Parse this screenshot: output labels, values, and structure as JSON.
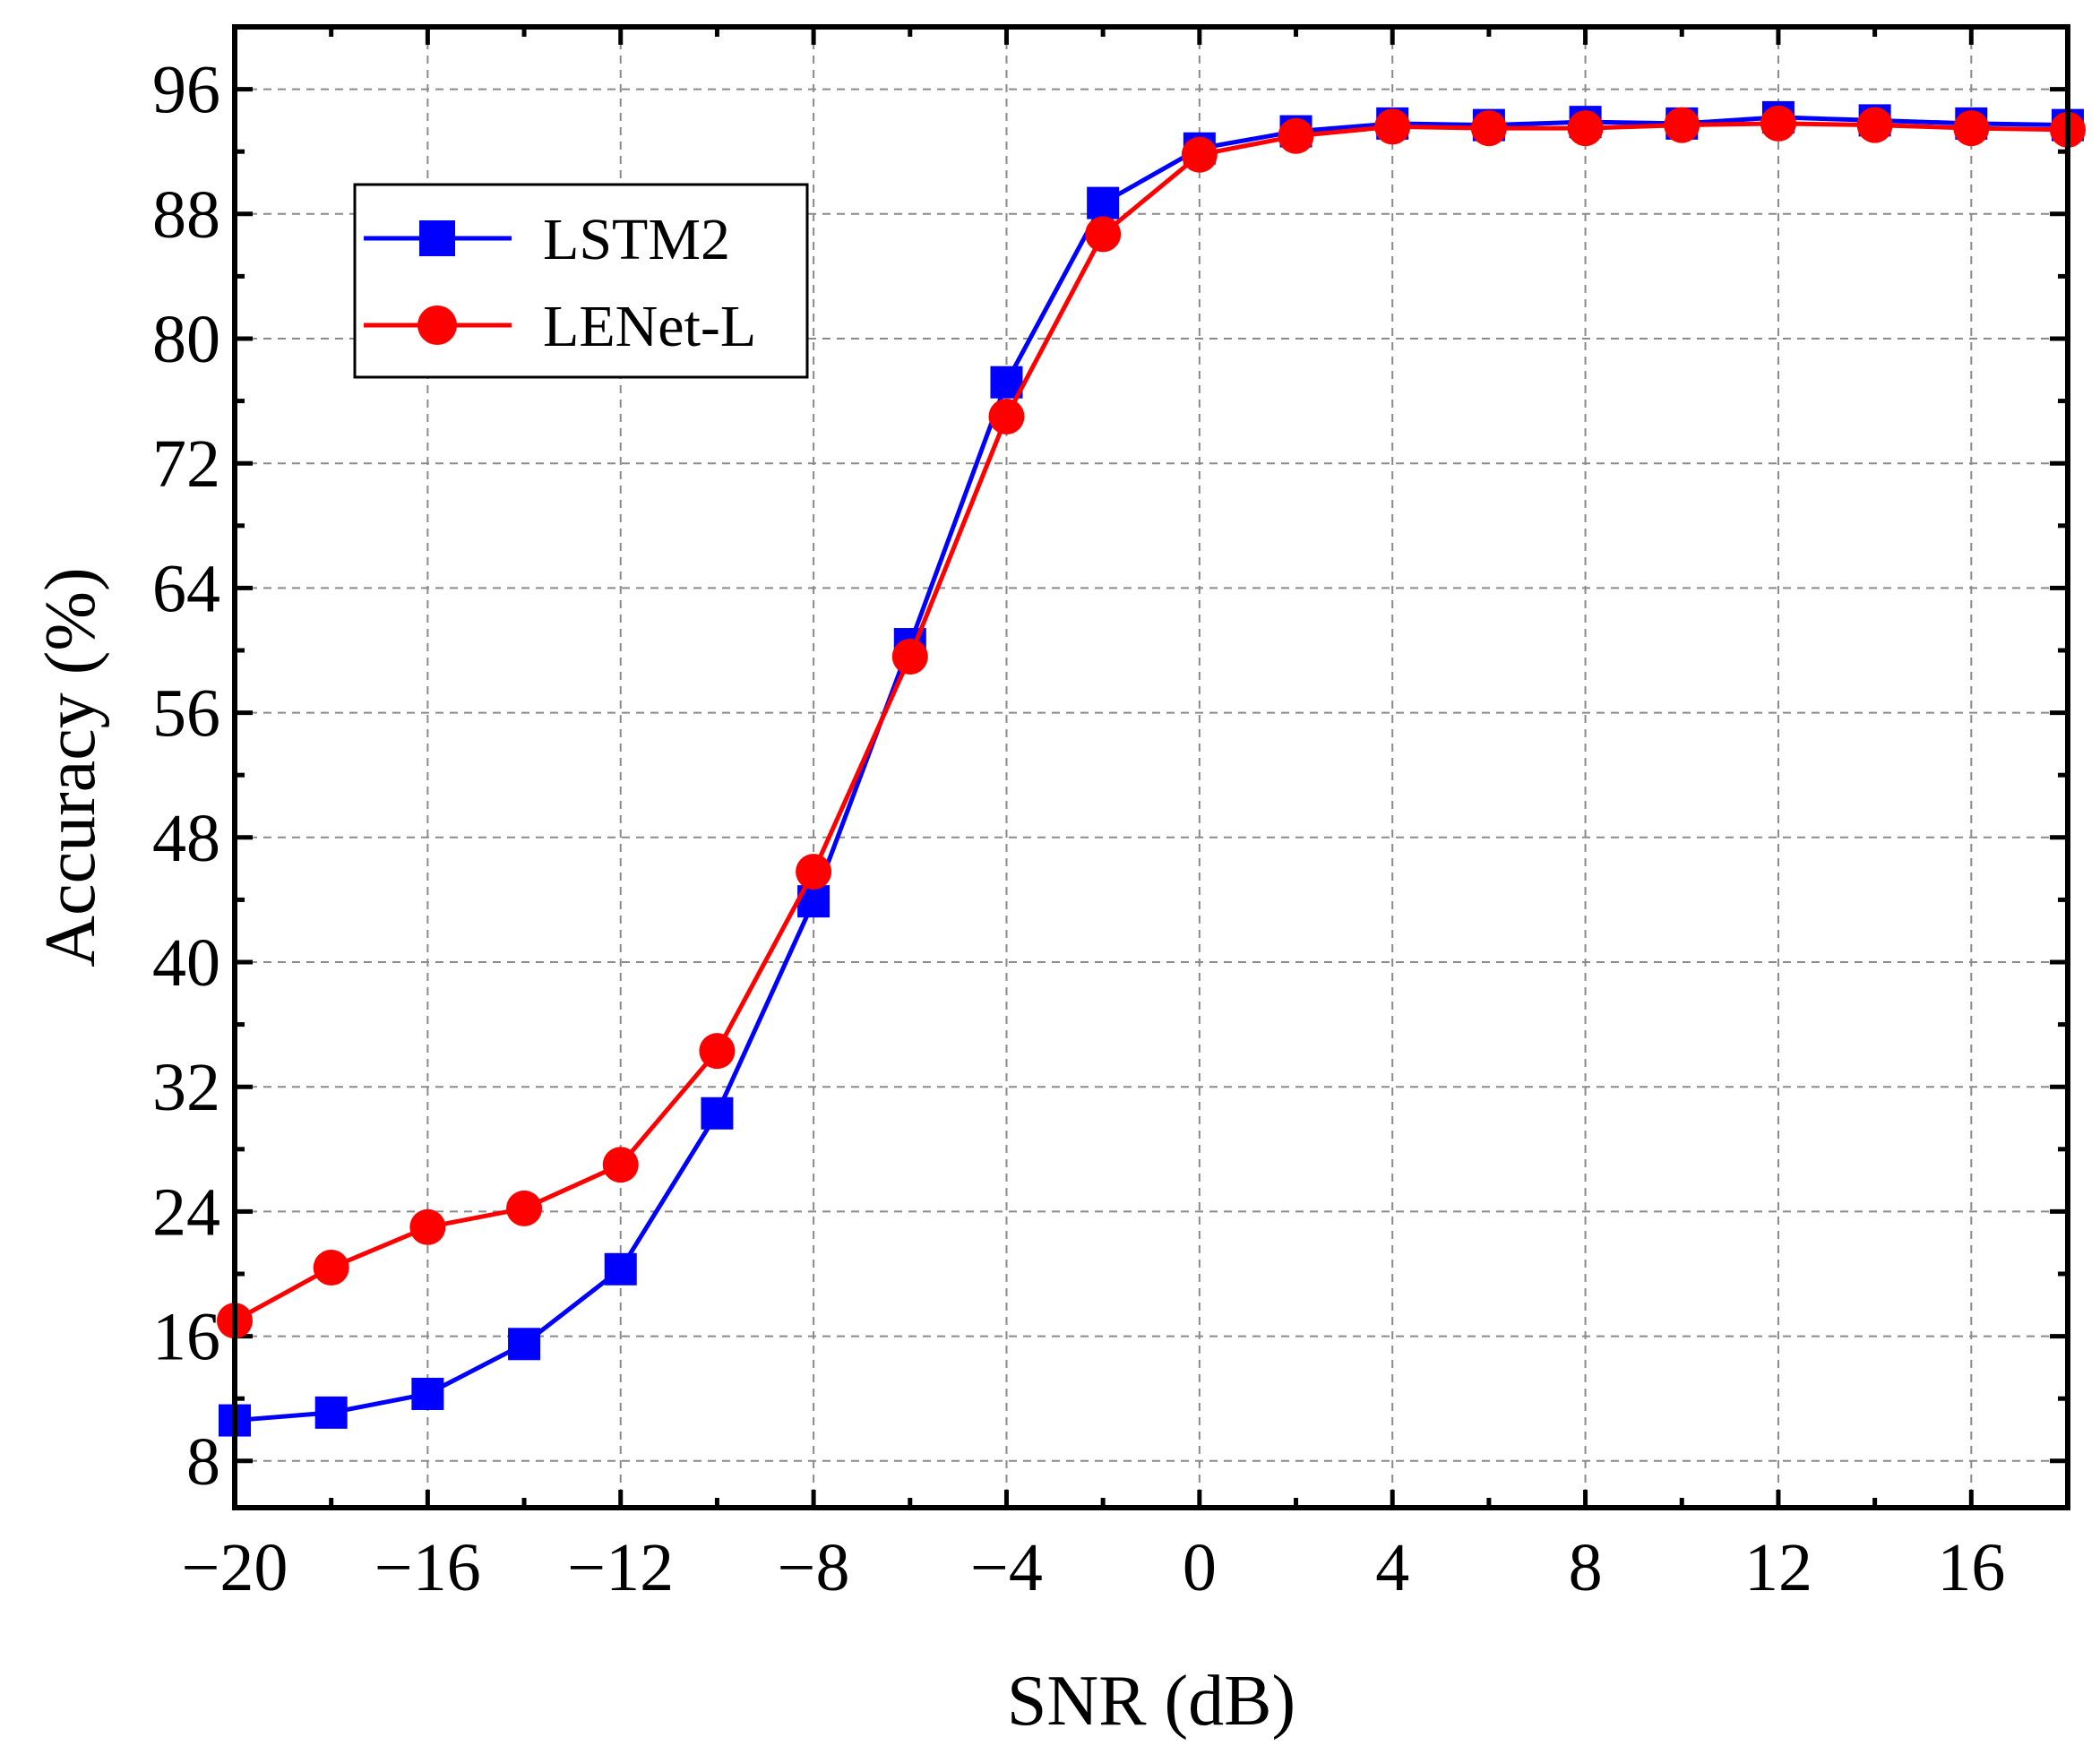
{
  "chart_data": {
    "type": "line",
    "title": "",
    "xlabel": "SNR (dB)",
    "ylabel": "Accuracy (%)",
    "xlim": [
      -20,
      18
    ],
    "ylim": [
      5,
      100
    ],
    "xticks": [
      -20,
      -16,
      -12,
      -8,
      -4,
      0,
      4,
      8,
      12,
      16
    ],
    "xtick_labels": [
      "−20",
      "−16",
      "−12",
      "−8",
      "−4",
      "0",
      "4",
      "8",
      "12",
      "16"
    ],
    "yticks": [
      8,
      16,
      24,
      32,
      40,
      48,
      56,
      64,
      72,
      80,
      88,
      96
    ],
    "ytick_labels": [
      "8",
      "16",
      "24",
      "32",
      "40",
      "48",
      "56",
      "64",
      "72",
      "80",
      "88",
      "96"
    ],
    "grid": true,
    "legend_position": "upper-left",
    "x": [
      -20,
      -18,
      -16,
      -14,
      -12,
      -10,
      -8,
      -6,
      -4,
      -2,
      0,
      2,
      4,
      6,
      8,
      10,
      12,
      14,
      16,
      18
    ],
    "series": [
      {
        "name": "LSTM2",
        "color": "#0000ff",
        "marker": "square",
        "values": [
          10.6,
          11.1,
          12.3,
          15.5,
          20.3,
          30.3,
          43.9,
          60.4,
          77.2,
          88.7,
          92.2,
          93.3,
          93.8,
          93.7,
          93.9,
          93.8,
          94.2,
          94.0,
          93.8,
          93.7
        ]
      },
      {
        "name": "LENet-L",
        "color": "#ff0000",
        "marker": "circle",
        "values": [
          17.0,
          20.4,
          23.0,
          24.2,
          27.0,
          34.3,
          45.8,
          59.6,
          75.0,
          86.7,
          91.8,
          93.0,
          93.6,
          93.5,
          93.5,
          93.7,
          93.8,
          93.7,
          93.5,
          93.4
        ]
      }
    ]
  }
}
